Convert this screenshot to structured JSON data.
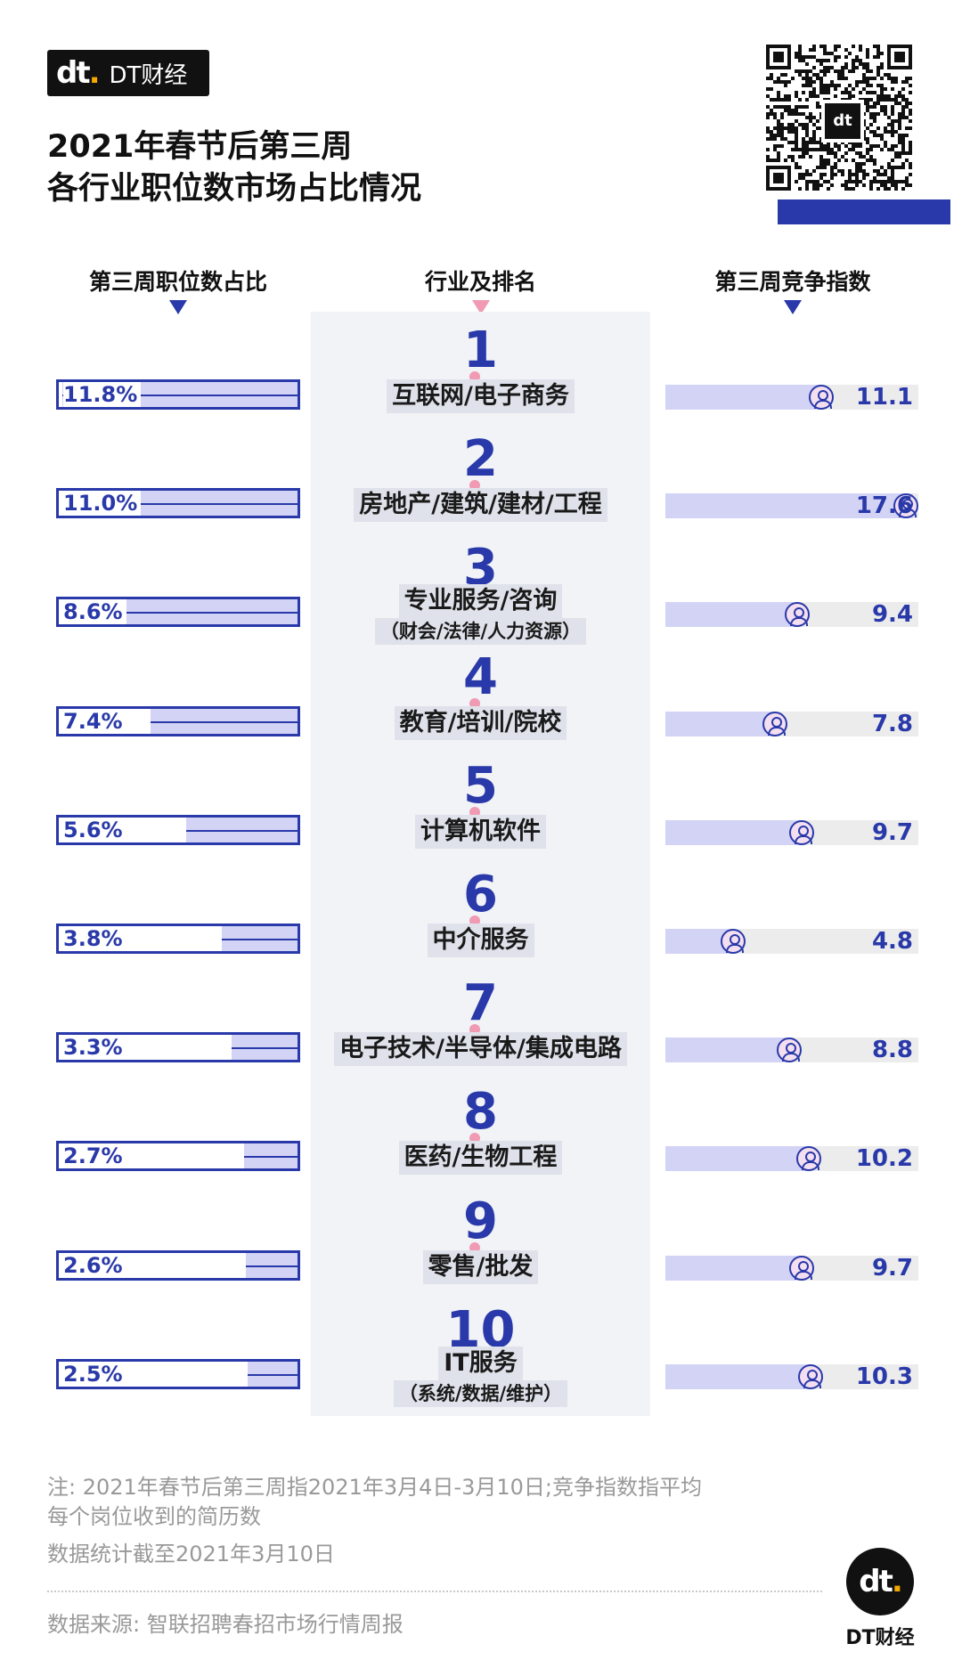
{
  "brand": {
    "logo_mark": "dt",
    "name": "DT财经"
  },
  "title_lines": [
    "2021年春节后第三周",
    "各行业职位数市场占比情况"
  ],
  "colors": {
    "accent": "#2939a9",
    "bar_light": "#d3d3f6",
    "rank_dot": "#f09ab4",
    "track": "#ececec"
  },
  "columns": {
    "left": "第三周职位数占比",
    "middle": "行业及排名",
    "right": "第三周竞争指数"
  },
  "chart_data": {
    "type": "table",
    "rows": [
      {
        "rank": "1",
        "industry": "互联网/电子商务",
        "sub": "",
        "share": 11.8,
        "share_label": "11.8%",
        "index": 11.1,
        "index_label": "11.1"
      },
      {
        "rank": "2",
        "industry": "房地产/建筑/建材/工程",
        "sub": "",
        "share": 11.0,
        "share_label": "11.0%",
        "index": 17.6,
        "index_label": "17.6"
      },
      {
        "rank": "3",
        "industry": "专业服务/咨询",
        "sub": "（财会/法律/人力资源）",
        "share": 8.6,
        "share_label": "8.6%",
        "index": 9.4,
        "index_label": "9.4"
      },
      {
        "rank": "4",
        "industry": "教育/培训/院校",
        "sub": "",
        "share": 7.4,
        "share_label": "7.4%",
        "index": 7.8,
        "index_label": "7.8"
      },
      {
        "rank": "5",
        "industry": "计算机软件",
        "sub": "",
        "share": 5.6,
        "share_label": "5.6%",
        "index": 9.7,
        "index_label": "9.7"
      },
      {
        "rank": "6",
        "industry": "中介服务",
        "sub": "",
        "share": 3.8,
        "share_label": "3.8%",
        "index": 4.8,
        "index_label": "4.8"
      },
      {
        "rank": "7",
        "industry": "电子技术/半导体/集成电路",
        "sub": "",
        "share": 3.3,
        "share_label": "3.3%",
        "index": 8.8,
        "index_label": "8.8"
      },
      {
        "rank": "8",
        "industry": "医药/生物工程",
        "sub": "",
        "share": 2.7,
        "share_label": "2.7%",
        "index": 10.2,
        "index_label": "10.2"
      },
      {
        "rank": "9",
        "industry": "零售/批发",
        "sub": "",
        "share": 2.6,
        "share_label": "2.6%",
        "index": 9.7,
        "index_label": "9.7"
      },
      {
        "rank": "10",
        "industry": "IT服务",
        "sub": "（系统/数据/维护）",
        "share": 2.5,
        "share_label": "2.5%",
        "index": 10.3,
        "index_label": "10.3"
      }
    ]
  },
  "notes": [
    "注: 2021年春节后第三周指2021年3月4日-3月10日;竞争指数指平均",
    "每个岗位收到的简历数",
    "数据统计截至2021年3月10日"
  ],
  "source": "数据来源: 智联招聘春招市场行情周报"
}
